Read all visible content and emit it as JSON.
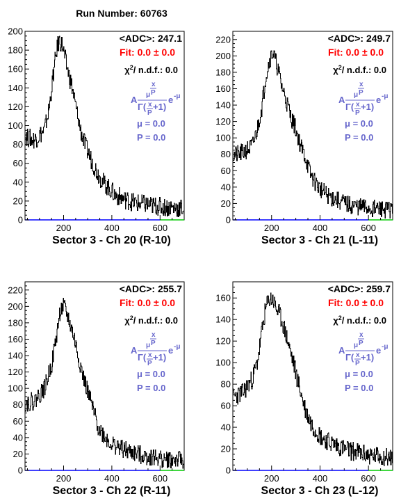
{
  "run_label": "Run Number: 60763",
  "axis_style": {
    "x_axis_colors": {
      "blue": "#0000ff",
      "green": "#00cc00",
      "split_at": 600
    }
  },
  "formula": {
    "text_A": "A",
    "exp_mu": "μ",
    "exp_frac_num": "x",
    "exp_frac_den": "P",
    "denominator": "Γ(x/P+1)",
    "den_gamma": "Γ(",
    "den_frac_num": "x",
    "den_frac_den": "P",
    "den_tail": "+1)",
    "exp_part": "e",
    "exp_part_sup": "-μ",
    "mu_label": "μ =  0.0",
    "p_label": "P =  0.0"
  },
  "chart_data": [
    {
      "type": "histogram",
      "title": "Sector 3  -  Ch 20    (R-10)",
      "adc_label": "<ADC>: 247.1",
      "fit_label": "Fit:  0.0  ± 0.0",
      "chi2_label_prefix": "χ",
      "chi2_label_suffix": "/ n.d.f.:  0.0",
      "xlim": [
        40,
        700
      ],
      "ylim": [
        0,
        200
      ],
      "yticks": [
        0,
        20,
        40,
        60,
        80,
        100,
        120,
        140,
        160,
        180,
        200
      ],
      "xticks": [
        200,
        400,
        600
      ],
      "profile": [
        [
          40,
          88
        ],
        [
          80,
          85
        ],
        [
          120,
          95
        ],
        [
          140,
          120
        ],
        [
          155,
          150
        ],
        [
          170,
          180
        ],
        [
          180,
          190
        ],
        [
          195,
          185
        ],
        [
          210,
          165
        ],
        [
          230,
          145
        ],
        [
          250,
          120
        ],
        [
          270,
          95
        ],
        [
          290,
          78
        ],
        [
          310,
          66
        ],
        [
          330,
          55
        ],
        [
          350,
          45
        ],
        [
          370,
          38
        ],
        [
          390,
          33
        ],
        [
          410,
          27
        ],
        [
          450,
          22
        ],
        [
          500,
          18
        ],
        [
          600,
          14
        ],
        [
          700,
          12
        ]
      ],
      "noise": 10,
      "seed": 20
    },
    {
      "type": "histogram",
      "title": "Sector 3  -  Ch 21    (L-11)",
      "adc_label": "<ADC>: 249.7",
      "fit_label": "Fit:  0.0  ± 0.0",
      "chi2_label_prefix": "χ",
      "chi2_label_suffix": "/ n.d.f.:  0.0",
      "xlim": [
        40,
        700
      ],
      "ylim": [
        0,
        230
      ],
      "yticks": [
        0,
        20,
        40,
        60,
        80,
        100,
        120,
        140,
        160,
        180,
        200,
        220
      ],
      "xticks": [
        200,
        400,
        600
      ],
      "profile": [
        [
          40,
          78
        ],
        [
          80,
          82
        ],
        [
          120,
          90
        ],
        [
          140,
          110
        ],
        [
          160,
          140
        ],
        [
          175,
          175
        ],
        [
          190,
          195
        ],
        [
          205,
          205
        ],
        [
          220,
          190
        ],
        [
          240,
          165
        ],
        [
          260,
          145
        ],
        [
          280,
          125
        ],
        [
          300,
          110
        ],
        [
          320,
          90
        ],
        [
          340,
          75
        ],
        [
          360,
          55
        ],
        [
          380,
          45
        ],
        [
          400,
          38
        ],
        [
          430,
          30
        ],
        [
          470,
          24
        ],
        [
          520,
          18
        ],
        [
          600,
          14
        ],
        [
          700,
          12
        ]
      ],
      "noise": 11,
      "seed": 21
    },
    {
      "type": "histogram",
      "title": "Sector 3  -  Ch 22    (R-11)",
      "adc_label": "<ADC>: 255.7",
      "fit_label": "Fit:  0.0  ± 0.0",
      "chi2_label_prefix": "χ",
      "chi2_label_suffix": "/ n.d.f.:  0.0",
      "xlim": [
        40,
        700
      ],
      "ylim": [
        0,
        230
      ],
      "yticks": [
        0,
        20,
        40,
        60,
        80,
        100,
        120,
        140,
        160,
        180,
        200,
        220
      ],
      "xticks": [
        200,
        400,
        600
      ],
      "profile": [
        [
          40,
          82
        ],
        [
          80,
          85
        ],
        [
          120,
          100
        ],
        [
          150,
          130
        ],
        [
          170,
          165
        ],
        [
          185,
          195
        ],
        [
          200,
          200
        ],
        [
          220,
          185
        ],
        [
          240,
          165
        ],
        [
          260,
          140
        ],
        [
          280,
          115
        ],
        [
          300,
          95
        ],
        [
          320,
          75
        ],
        [
          340,
          55
        ],
        [
          360,
          45
        ],
        [
          380,
          38
        ],
        [
          400,
          32
        ],
        [
          450,
          25
        ],
        [
          500,
          20
        ],
        [
          600,
          14
        ],
        [
          700,
          12
        ]
      ],
      "noise": 11,
      "seed": 22
    },
    {
      "type": "histogram",
      "title": "Sector 3  -  Ch 23    (L-12)",
      "adc_label": "<ADC>: 259.7",
      "fit_label": "Fit:  0.0  ± 0.0",
      "chi2_label_prefix": "χ",
      "chi2_label_suffix": "/ n.d.f.:  0.0",
      "xlim": [
        40,
        700
      ],
      "ylim": [
        0,
        175
      ],
      "yticks": [
        0,
        20,
        40,
        60,
        80,
        100,
        120,
        140,
        160
      ],
      "xticks": [
        200,
        400,
        600
      ],
      "profile": [
        [
          40,
          68
        ],
        [
          80,
          72
        ],
        [
          120,
          85
        ],
        [
          140,
          100
        ],
        [
          160,
          130
        ],
        [
          175,
          150
        ],
        [
          190,
          160
        ],
        [
          205,
          158
        ],
        [
          220,
          150
        ],
        [
          240,
          140
        ],
        [
          260,
          125
        ],
        [
          280,
          108
        ],
        [
          300,
          90
        ],
        [
          320,
          72
        ],
        [
          340,
          55
        ],
        [
          360,
          45
        ],
        [
          380,
          38
        ],
        [
          400,
          32
        ],
        [
          440,
          26
        ],
        [
          500,
          20
        ],
        [
          600,
          14
        ],
        [
          700,
          12
        ]
      ],
      "noise": 9,
      "seed": 23
    }
  ]
}
